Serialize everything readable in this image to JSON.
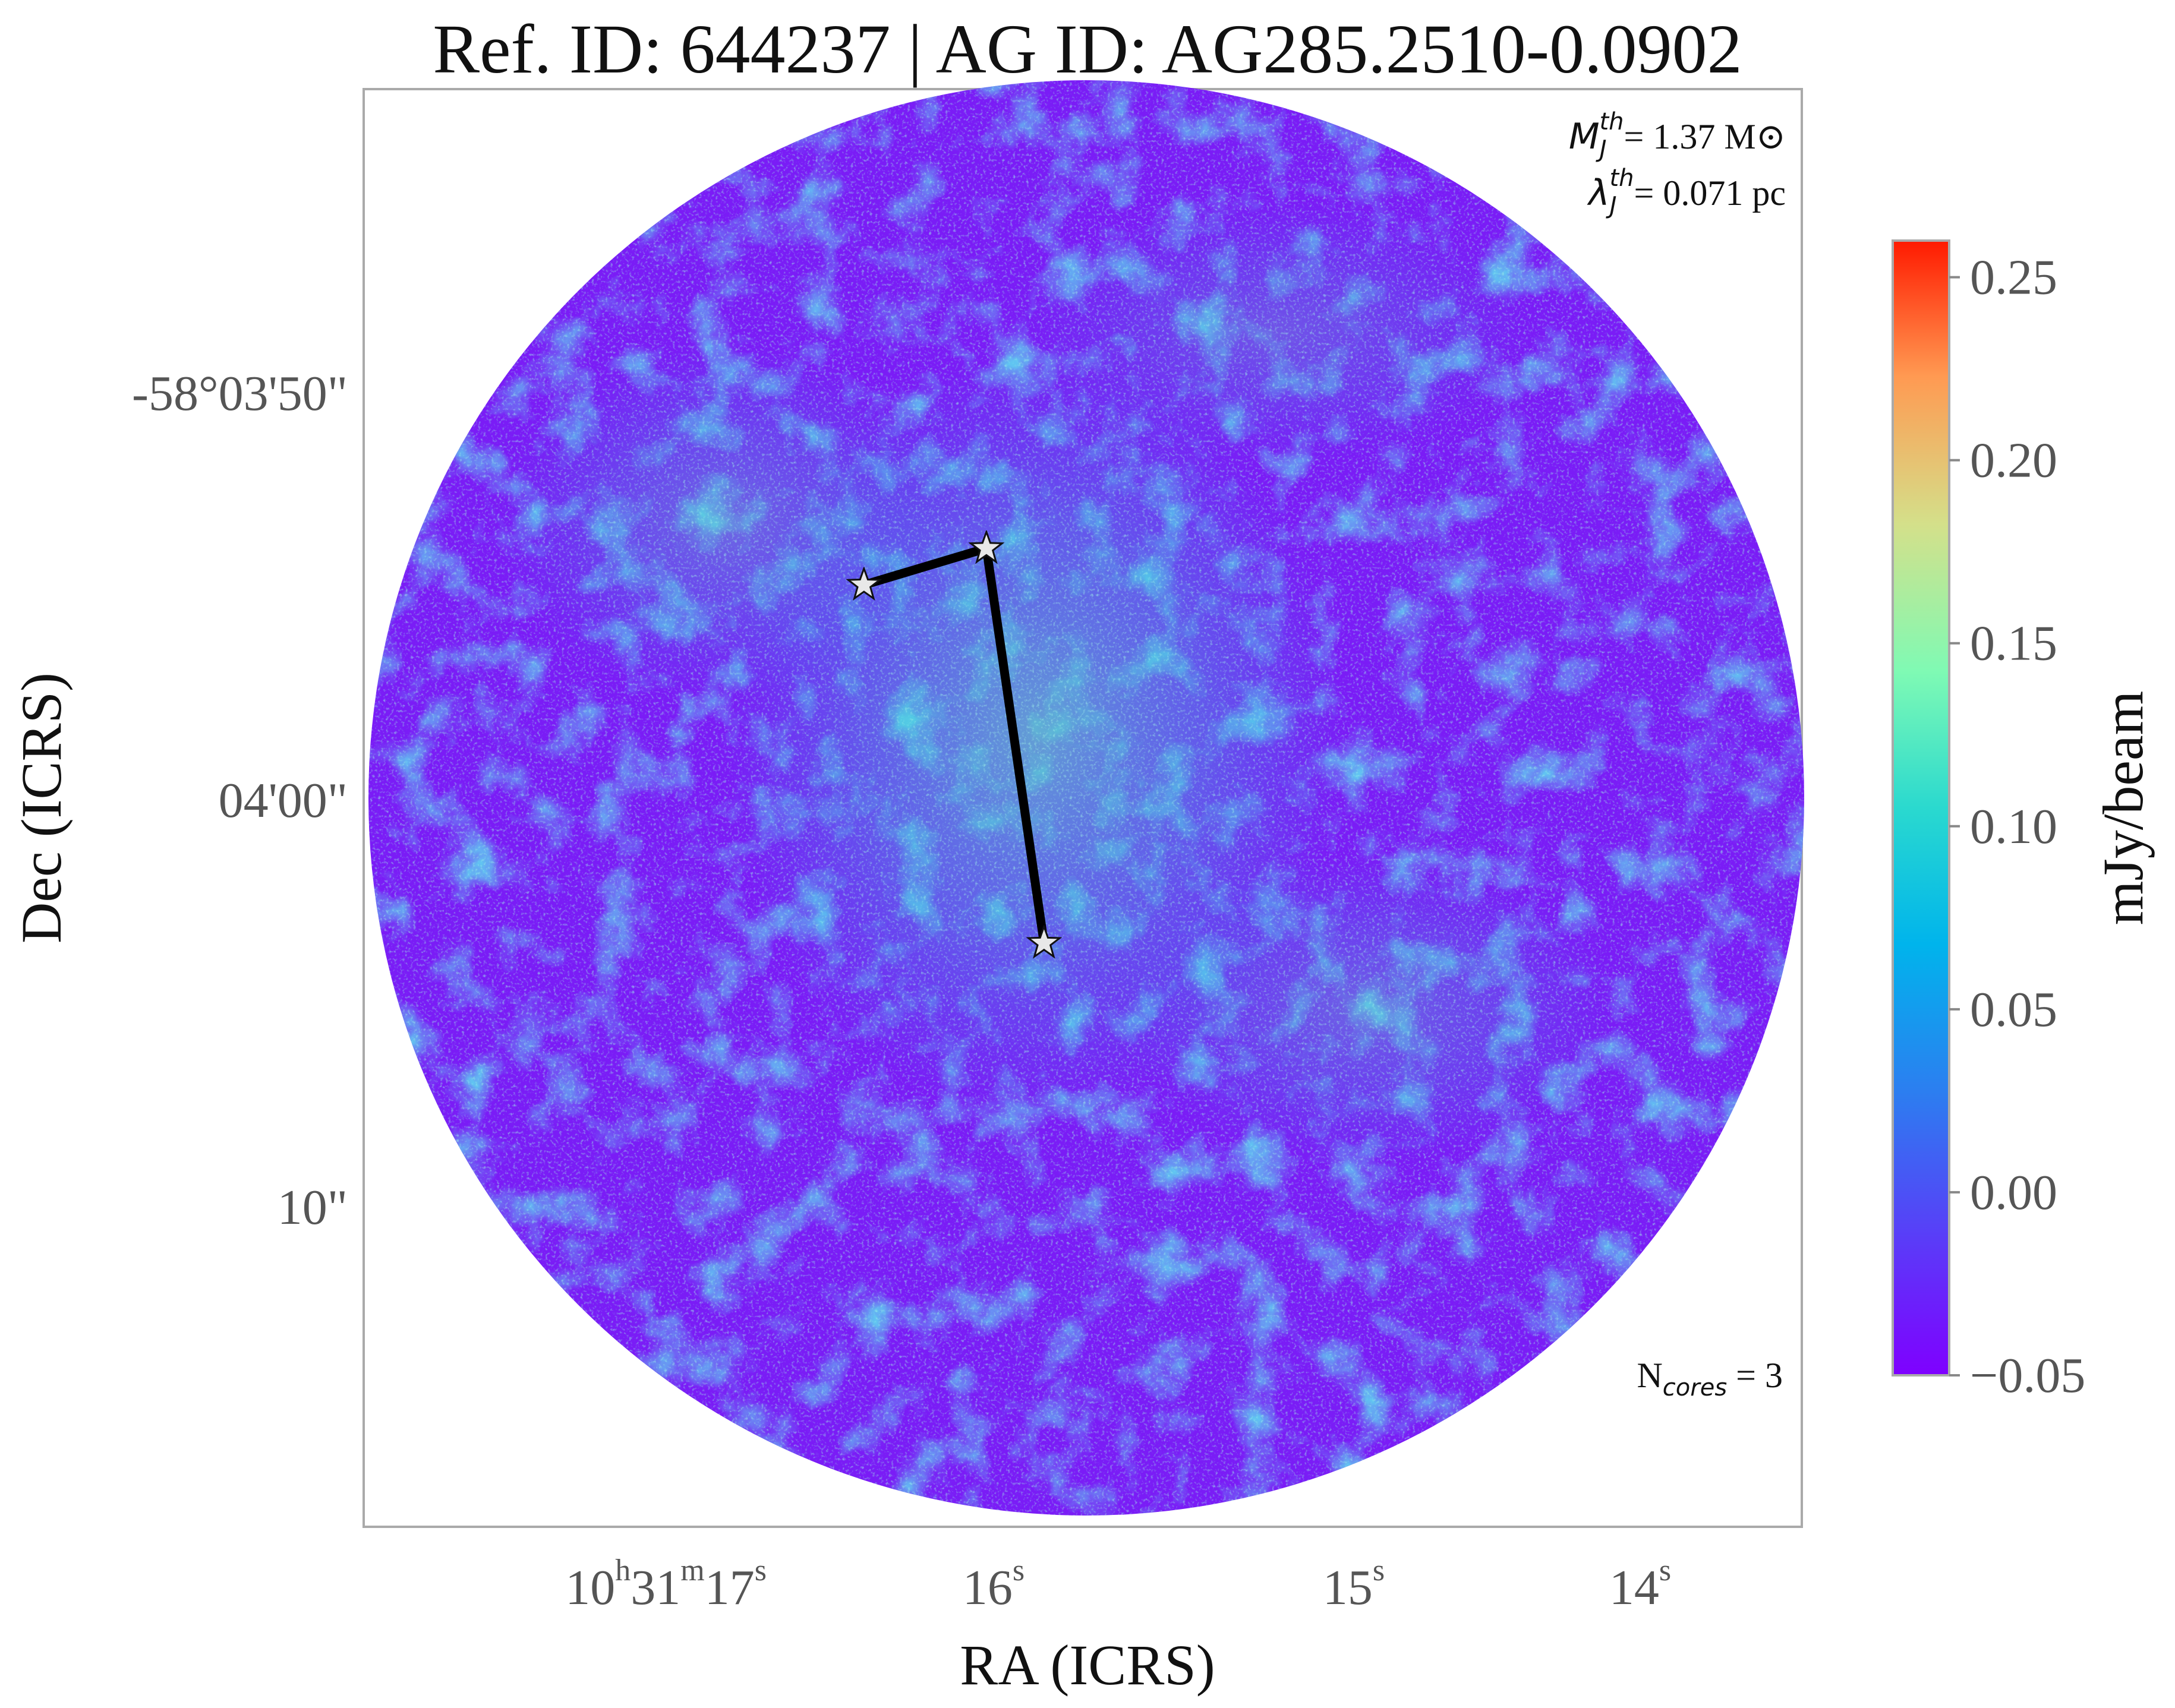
{
  "chart_data": {
    "type": "heatmap",
    "title": "Ref. ID: 644237 | AG ID: AG285.2510-0.0902",
    "xlabel": "RA (ICRS)",
    "ylabel": "Dec (ICRS)",
    "x_ticks": [
      {
        "h": "10",
        "h_unit": "h",
        "m": "31",
        "m_unit": "m",
        "s": "17",
        "s_unit": "s"
      },
      {
        "s": "16",
        "s_unit": "s"
      },
      {
        "s": "15",
        "s_unit": "s"
      },
      {
        "s": "14",
        "s_unit": "s"
      }
    ],
    "y_ticks": [
      "-58°03'50\"",
      "04'00\"",
      "10\""
    ],
    "colorbar": {
      "label": "mJy/beam",
      "min": -0.05,
      "max": 0.26,
      "ticks": [
        "0.25",
        "0.20",
        "0.15",
        "0.10",
        "0.05",
        "0.00",
        "−0.05"
      ],
      "tick_values": [
        0.25,
        0.2,
        0.15,
        0.1,
        0.05,
        0.0,
        -0.05
      ],
      "colormap": "rainbow"
    },
    "annotations": {
      "mass": {
        "symbol": "M",
        "sub": "J",
        "sup": "th",
        "text": "= 1.37 M⊙"
      },
      "length": {
        "symbol": "λ",
        "sub": "J",
        "sup": "th",
        "text": "= 0.071 pc"
      },
      "ncores": {
        "symbol": "N",
        "sub": "cores",
        "text": " = 3"
      }
    },
    "cores": [
      {
        "ra_s": 16.36,
        "dec_arcsec": 54.3
      },
      {
        "ra_s": 16.02,
        "dec_arcsec": 53.4
      },
      {
        "ra_s": 15.86,
        "dec_arcsec": 63.1
      }
    ],
    "mst_edges": [
      [
        0,
        1
      ],
      [
        1,
        2
      ]
    ],
    "colors": {
      "edge": "#000000",
      "star_fill": "#e8e8e8",
      "frame": "#aaaaaa"
    }
  }
}
